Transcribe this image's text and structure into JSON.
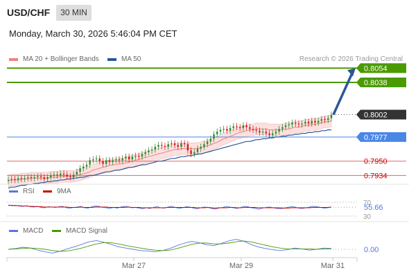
{
  "header": {
    "symbol": "USD/CHF",
    "timeframe": "30 MIN",
    "datetime": "Monday, March 30, 2026 5:46:04 PM CET"
  },
  "legend": {
    "ma20_label": "MA 20 + Bollinger Bands",
    "ma50_label": "MA 50",
    "research": "Research © 2026 Trading Central",
    "rsi_label": "RSI",
    "rsi_ma_label": "9MA",
    "macd_label": "MACD",
    "macd_signal_label": "MACD Signal"
  },
  "colors": {
    "ma20": "#f08080",
    "ma50": "#2b5797",
    "target": "#4a9a00",
    "pivot": "#4a86e8",
    "support": "#e06666",
    "support_text": "#cc0000",
    "last": "#333333",
    "bull": "#2e8b2e",
    "bear": "#cc2222",
    "rsi": "#5577dd",
    "rsi_ma": "#cc0000",
    "macd": "#5577dd",
    "macd_signal": "#4a9a00",
    "arrow": "#2b5797"
  },
  "chart_data": [
    {
      "type": "candlestick",
      "title": "USD/CHF 30 MIN",
      "x_ticks": [
        "Mar 27",
        "Mar 29",
        "Mar 31"
      ],
      "ylim": [
        0.7925,
        0.8062
      ],
      "levels": [
        {
          "name": "target2",
          "value": 0.8054,
          "label": "0.8054"
        },
        {
          "name": "target1",
          "value": 0.8038,
          "label": "0.8038"
        },
        {
          "name": "last",
          "value": 0.8002,
          "label": "0.8002"
        },
        {
          "name": "pivot",
          "value": 0.7977,
          "label": "0.7977"
        },
        {
          "name": "support1",
          "value": 0.795,
          "label": "0.7950"
        },
        {
          "name": "support2",
          "value": 0.7934,
          "label": "0.7934"
        }
      ],
      "close_series": [
        0.7929,
        0.793,
        0.7929,
        0.7931,
        0.793,
        0.7931,
        0.7932,
        0.7931,
        0.7932,
        0.7933,
        0.7932,
        0.793,
        0.7932,
        0.7934,
        0.7935,
        0.7934,
        0.7936,
        0.7935,
        0.7933,
        0.7932,
        0.7935,
        0.7938,
        0.7942,
        0.7944,
        0.7946,
        0.7951,
        0.7952,
        0.7953,
        0.795,
        0.7947,
        0.7951,
        0.7949,
        0.7951,
        0.7952,
        0.7951,
        0.7953,
        0.7955,
        0.7952,
        0.7955,
        0.7956,
        0.7955,
        0.7958,
        0.796,
        0.7962,
        0.7963,
        0.7966,
        0.7968,
        0.7967,
        0.7966,
        0.7969,
        0.797,
        0.7968,
        0.7966,
        0.797,
        0.7969,
        0.7962,
        0.7958,
        0.796,
        0.7964,
        0.7966,
        0.7969,
        0.7972,
        0.7975,
        0.798,
        0.7983,
        0.7985,
        0.7986,
        0.7984,
        0.7987,
        0.7989,
        0.7988,
        0.7987,
        0.799,
        0.7988,
        0.7986,
        0.7985,
        0.7984,
        0.7982,
        0.7983,
        0.7981,
        0.7979,
        0.7981,
        0.7983,
        0.7986,
        0.7988,
        0.799,
        0.7991,
        0.7993,
        0.7992,
        0.7991,
        0.7992,
        0.7994,
        0.7992,
        0.7995,
        0.7993,
        0.7995,
        0.7997,
        0.7996,
        0.7998,
        0.8002
      ],
      "ma20_series": [
        0.7928,
        0.7929,
        0.7929,
        0.7929,
        0.793,
        0.793,
        0.793,
        0.7931,
        0.7931,
        0.7931,
        0.7931,
        0.7931,
        0.7931,
        0.7932,
        0.7932,
        0.7932,
        0.7933,
        0.7933,
        0.7933,
        0.7933,
        0.7933,
        0.7934,
        0.7935,
        0.7936,
        0.7937,
        0.7938,
        0.794,
        0.7941,
        0.7942,
        0.7943,
        0.7944,
        0.7945,
        0.7946,
        0.7946,
        0.7947,
        0.7947,
        0.7948,
        0.7949,
        0.795,
        0.7951,
        0.7952,
        0.7953,
        0.7954,
        0.7955,
        0.7956,
        0.7957,
        0.7958,
        0.7959,
        0.796,
        0.7961,
        0.7962,
        0.7963,
        0.7963,
        0.7964,
        0.7964,
        0.7964,
        0.7964,
        0.7964,
        0.7964,
        0.7965,
        0.7966,
        0.7967,
        0.7968,
        0.797,
        0.7971,
        0.7973,
        0.7975,
        0.7976,
        0.7978,
        0.7979,
        0.7981,
        0.7982,
        0.7983,
        0.7984,
        0.7985,
        0.7985,
        0.7986,
        0.7986,
        0.7986,
        0.7986,
        0.7985,
        0.7985,
        0.7985,
        0.7985,
        0.7985,
        0.7986,
        0.7986,
        0.7987,
        0.7988,
        0.7988,
        0.7989,
        0.799,
        0.799,
        0.7991,
        0.7991,
        0.7992,
        0.7993,
        0.7994,
        0.7994,
        0.7995
      ],
      "ma50_series": [
        0.792,
        0.7921,
        0.7921,
        0.7922,
        0.7923,
        0.7923,
        0.7924,
        0.7924,
        0.7925,
        0.7925,
        0.7926,
        0.7926,
        0.7927,
        0.7927,
        0.7928,
        0.7928,
        0.7929,
        0.7929,
        0.793,
        0.793,
        0.7931,
        0.7931,
        0.7932,
        0.7932,
        0.7933,
        0.7934,
        0.7934,
        0.7935,
        0.7936,
        0.7937,
        0.7938,
        0.7938,
        0.7939,
        0.794,
        0.794,
        0.7941,
        0.7942,
        0.7943,
        0.7943,
        0.7944,
        0.7945,
        0.7946,
        0.7946,
        0.7947,
        0.7948,
        0.7949,
        0.795,
        0.795,
        0.7951,
        0.7952,
        0.7953,
        0.7953,
        0.7954,
        0.7955,
        0.7955,
        0.7956,
        0.7956,
        0.7957,
        0.7958,
        0.7958,
        0.7959,
        0.796,
        0.7961,
        0.7962,
        0.7963,
        0.7964,
        0.7965,
        0.7966,
        0.7967,
        0.7968,
        0.7969,
        0.797,
        0.7971,
        0.7972,
        0.7972,
        0.7973,
        0.7974,
        0.7974,
        0.7975,
        0.7975,
        0.7976,
        0.7976,
        0.7977,
        0.7977,
        0.7978,
        0.7978,
        0.7979,
        0.7979,
        0.798,
        0.798,
        0.7981,
        0.7981,
        0.7982,
        0.7982,
        0.7983,
        0.7983,
        0.7984,
        0.7984,
        0.7985,
        0.7985
      ],
      "projection": {
        "from": 0.8002,
        "to": 0.8054
      }
    },
    {
      "type": "line",
      "title": "RSI",
      "ylim": [
        30,
        70
      ],
      "ticks": [
        "70",
        "30"
      ],
      "last_value": "55.66",
      "series": [
        {
          "name": "RSI",
          "values": [
            62,
            60,
            61,
            59,
            58,
            60,
            57,
            56,
            58,
            55,
            54,
            57,
            56,
            55,
            57,
            58,
            54,
            53,
            55,
            56,
            58,
            54,
            53,
            57,
            59,
            58,
            55,
            54,
            52,
            55,
            53,
            56,
            58,
            57,
            54,
            55,
            53,
            51,
            54,
            52,
            55,
            57,
            54,
            53,
            56,
            58,
            55,
            52,
            54,
            57,
            56,
            53,
            51,
            54,
            56,
            55,
            52,
            50,
            53,
            55,
            57,
            56,
            54,
            52,
            55,
            58,
            57,
            54,
            52,
            50,
            53,
            55,
            56,
            54,
            52,
            51,
            53,
            55,
            57,
            56,
            53,
            52,
            54,
            56,
            58,
            57,
            55,
            53,
            54,
            56
          ]
        },
        {
          "name": "9MA",
          "values": [
            61,
            61,
            60,
            60,
            59,
            59,
            58,
            58,
            57,
            57,
            56,
            56,
            56,
            56,
            56,
            56,
            56,
            55,
            55,
            55,
            56,
            55,
            55,
            55,
            56,
            56,
            56,
            56,
            55,
            55,
            55,
            55,
            55,
            56,
            55,
            55,
            55,
            54,
            54,
            54,
            54,
            54,
            54,
            54,
            55,
            55,
            55,
            55,
            55,
            55,
            55,
            55,
            54,
            54,
            54,
            55,
            54,
            53,
            54,
            54,
            54,
            55,
            55,
            54,
            54,
            55,
            55,
            55,
            55,
            54,
            54,
            54,
            54,
            54,
            54,
            54,
            53,
            53,
            54,
            54,
            54,
            54,
            54,
            54,
            55,
            55,
            55,
            55,
            55,
            56
          ]
        }
      ]
    },
    {
      "type": "line",
      "title": "MACD",
      "last_value": "0.00",
      "series": [
        {
          "name": "MACD",
          "values": [
            0.0,
            0.2,
            0.5,
            0.3,
            -0.2,
            -0.6,
            -0.9,
            -0.5,
            0.1,
            0.6,
            1.2,
            1.8,
            2.1,
            1.7,
            1.2,
            0.6,
            0.3,
            0.0,
            -0.3,
            -0.4,
            -0.6,
            -0.3,
            0.2,
            0.9,
            1.5,
            1.9,
            1.6,
            1.1,
            0.9,
            1.4,
            2.0,
            2.4,
            2.0,
            1.2,
            0.6,
            0.2,
            -0.1,
            -0.3,
            -0.1,
            0.3,
            0.1,
            -0.2,
            0.0,
            0.3,
            0.2
          ]
        },
        {
          "name": "MACD Signal",
          "values": [
            0.0,
            0.1,
            0.2,
            0.3,
            0.2,
            0.0,
            -0.3,
            -0.5,
            -0.4,
            -0.1,
            0.3,
            0.8,
            1.3,
            1.6,
            1.6,
            1.3,
            0.9,
            0.6,
            0.3,
            0.0,
            -0.2,
            -0.3,
            -0.2,
            0.2,
            0.7,
            1.2,
            1.5,
            1.5,
            1.3,
            1.3,
            1.5,
            1.8,
            2.0,
            1.8,
            1.4,
            1.0,
            0.6,
            0.3,
            0.1,
            0.1,
            0.1,
            0.1,
            0.0,
            0.1,
            0.1
          ]
        }
      ]
    }
  ]
}
